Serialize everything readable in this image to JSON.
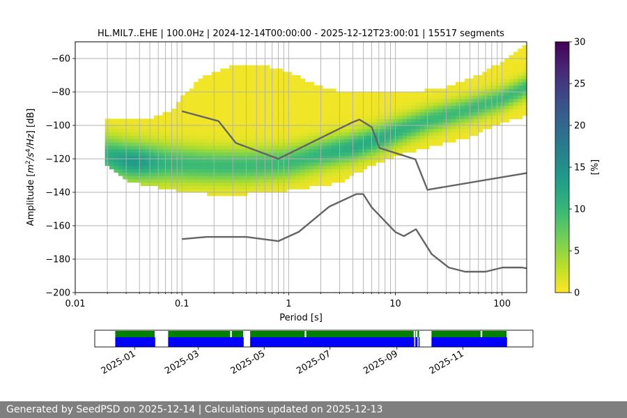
{
  "chart_data": {
    "type": "heatmap",
    "title": "HL.MIL7..EHE | 100.0Hz | 2024-12-14T00:00:00 - 2025-12-12T23:00:01 | 15517 segments",
    "xlabel": "Period [s]",
    "ylabel_parts": [
      "Amplitude [",
      "m",
      "2",
      "/",
      "s",
      "4",
      "/",
      "Hz",
      "] [dB]"
    ],
    "x_scale": "log",
    "xlim": [
      0.01,
      170
    ],
    "ylim": [
      -200,
      -50
    ],
    "x_ticks": [
      {
        "value": 0.01,
        "label": "0.01"
      },
      {
        "value": 0.1,
        "label": "0.1"
      },
      {
        "value": 1,
        "label": "1"
      },
      {
        "value": 10,
        "label": "10"
      },
      {
        "value": 100,
        "label": "100"
      }
    ],
    "y_ticks": [
      {
        "value": -60,
        "label": "−60"
      },
      {
        "value": -80,
        "label": "−80"
      },
      {
        "value": -100,
        "label": "−100"
      },
      {
        "value": -120,
        "label": "−120"
      },
      {
        "value": -140,
        "label": "−140"
      },
      {
        "value": -160,
        "label": "−160"
      },
      {
        "value": -180,
        "label": "−180"
      },
      {
        "value": -200,
        "label": "−200"
      }
    ],
    "grid": true,
    "colormap": "viridis_r",
    "colorbar": {
      "label": "[%]",
      "range": [
        0,
        30
      ],
      "ticks": [
        {
          "value": 0,
          "label": "0"
        },
        {
          "value": 5,
          "label": "5"
        },
        {
          "value": 10,
          "label": "10"
        },
        {
          "value": 15,
          "label": "15"
        },
        {
          "value": 20,
          "label": "20"
        },
        {
          "value": 25,
          "label": "25"
        },
        {
          "value": 30,
          "label": "30"
        }
      ]
    },
    "psd_distribution": {
      "period_range": [
        0.019,
        170
      ],
      "mode": [
        [
          0.019,
          -118
        ],
        [
          0.03,
          -121
        ],
        [
          0.05,
          -122
        ],
        [
          0.1,
          -123
        ],
        [
          0.2,
          -124
        ],
        [
          0.4,
          -124
        ],
        [
          0.7,
          -123
        ],
        [
          1,
          -122
        ],
        [
          2,
          -117
        ],
        [
          4,
          -113
        ],
        [
          7,
          -108
        ],
        [
          10,
          -104
        ],
        [
          20,
          -97
        ],
        [
          50,
          -90
        ],
        [
          100,
          -84
        ],
        [
          170,
          -77
        ]
      ],
      "upper": [
        [
          0.019,
          -97
        ],
        [
          0.03,
          -97
        ],
        [
          0.05,
          -96
        ],
        [
          0.08,
          -91
        ],
        [
          0.1,
          -83
        ],
        [
          0.15,
          -72
        ],
        [
          0.3,
          -64
        ],
        [
          0.5,
          -63
        ],
        [
          1,
          -68
        ],
        [
          2,
          -77
        ],
        [
          4,
          -81
        ],
        [
          8,
          -80
        ],
        [
          15,
          -80
        ],
        [
          30,
          -77
        ],
        [
          60,
          -70
        ],
        [
          100,
          -62
        ],
        [
          170,
          -52
        ]
      ],
      "lower": [
        [
          0.019,
          -122
        ],
        [
          0.025,
          -129
        ],
        [
          0.03,
          -133
        ],
        [
          0.05,
          -136
        ],
        [
          0.1,
          -140
        ],
        [
          0.3,
          -142
        ],
        [
          0.6,
          -140
        ],
        [
          1,
          -139
        ],
        [
          2,
          -136
        ],
        [
          3,
          -134
        ],
        [
          5,
          -126
        ],
        [
          10,
          -118
        ],
        [
          20,
          -113
        ],
        [
          50,
          -107
        ],
        [
          100,
          -98
        ],
        [
          170,
          -94
        ]
      ]
    },
    "noise_models": [
      {
        "points": [
          [
            0.1,
            -91.5
          ],
          [
            0.22,
            -97.4
          ],
          [
            0.32,
            -110.5
          ],
          [
            0.8,
            -120
          ],
          [
            4,
            -98
          ],
          [
            4.6,
            -96.5
          ],
          [
            6,
            -101
          ],
          [
            7.1,
            -113.5
          ],
          [
            15.4,
            -120.3
          ],
          [
            20,
            -138.5
          ],
          [
            170,
            -128.5
          ]
        ]
      },
      {
        "points": [
          [
            0.1,
            -168
          ],
          [
            0.17,
            -166.7
          ],
          [
            0.4,
            -166.7
          ],
          [
            0.8,
            -169.2
          ],
          [
            1.24,
            -163.7
          ],
          [
            2.4,
            -148.6
          ],
          [
            4.3,
            -141.1
          ],
          [
            5,
            -141.1
          ],
          [
            6,
            -149
          ],
          [
            10,
            -163.8
          ],
          [
            12,
            -166.2
          ],
          [
            15.6,
            -162.1
          ],
          [
            21.9,
            -177
          ],
          [
            31.6,
            -185
          ],
          [
            45,
            -187.5
          ],
          [
            70,
            -187.5
          ],
          [
            101,
            -185
          ],
          [
            154,
            -185
          ],
          [
            170,
            -185.5
          ]
        ]
      }
    ],
    "availability": {
      "x_ticks": [
        {
          "date": "2025-01-01",
          "label": "2025-01"
        },
        {
          "date": "2025-03-01",
          "label": "2025-03"
        },
        {
          "date": "2025-05-01",
          "label": "2025-05"
        },
        {
          "date": "2025-07-01",
          "label": "2025-07"
        },
        {
          "date": "2025-09-01",
          "label": "2025-09"
        },
        {
          "date": "2025-11-01",
          "label": "2025-11"
        }
      ],
      "range": [
        "2024-11-25",
        "2026-01-05"
      ],
      "data_segments": [
        [
          "2024-12-14",
          "2025-01-20"
        ],
        [
          "2025-02-01",
          "2025-04-12"
        ],
        [
          "2025-04-18",
          "2025-09-17"
        ],
        [
          "2025-09-18",
          "2025-09-20"
        ],
        [
          "2025-09-21",
          "2025-09-22"
        ],
        [
          "2025-10-03",
          "2025-12-12"
        ]
      ],
      "processed_segments": [
        [
          "2024-12-14",
          "2025-01-20"
        ],
        [
          "2025-02-01",
          "2025-03-31"
        ],
        [
          "2025-04-01",
          "2025-04-12"
        ],
        [
          "2025-04-18",
          "2025-06-08"
        ],
        [
          "2025-06-09",
          "2025-09-17"
        ],
        [
          "2025-09-18",
          "2025-09-19"
        ],
        [
          "2025-09-20",
          "2025-09-22"
        ],
        [
          "2025-10-03",
          "2025-11-18"
        ],
        [
          "2025-11-19",
          "2025-12-12"
        ]
      ],
      "data_color": "#0000ff",
      "processed_color": "#008000"
    }
  },
  "footer": {
    "text": "Generated by SeedPSD on 2025-12-14 | Calculations updated on 2025-12-13"
  }
}
